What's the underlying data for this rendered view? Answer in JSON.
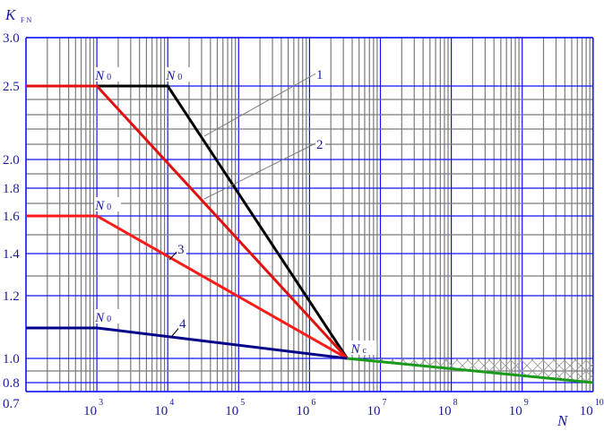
{
  "chart_data": {
    "type": "line",
    "ylabel": "K",
    "ylabel_sub": "FN",
    "xlabel": "N",
    "x_scale": "log",
    "xlim": [
      100,
      10000000000
    ],
    "ylim": [
      0.7,
      3.0
    ],
    "grid": true,
    "y_ticks": [
      3.0,
      2.5,
      2.0,
      1.8,
      1.6,
      1.4,
      1.2,
      1.0,
      0.8,
      0.7
    ],
    "y_tick_labels": [
      "3.0",
      "2.5",
      "2.0",
      "1.8",
      "1.6",
      "1.4",
      "1.2",
      "1.0",
      "0.8",
      "0.7"
    ],
    "x_ticks": [
      {
        "base": "10",
        "exp": "3",
        "value": 1000
      },
      {
        "base": "10",
        "exp": "4",
        "value": 10000
      },
      {
        "base": "10",
        "exp": "5",
        "value": 100000
      },
      {
        "base": "10",
        "exp": "6",
        "value": 1000000
      },
      {
        "base": "10",
        "exp": "7",
        "value": 10000000
      },
      {
        "base": "10",
        "exp": "8",
        "value": 100000000
      },
      {
        "base": "10",
        "exp": "9",
        "value": 1000000000
      },
      {
        "base": "10",
        "exp": "10",
        "value": 10000000000
      }
    ],
    "series": [
      {
        "name": "1",
        "color": "#000000",
        "points": [
          [
            100,
            2.5
          ],
          [
            10000,
            2.5
          ],
          [
            3400000,
            1.0
          ]
        ]
      },
      {
        "name": "2",
        "color": "#e01010",
        "points": [
          [
            100,
            2.5
          ],
          [
            1000,
            2.5
          ],
          [
            3400000,
            1.0
          ]
        ]
      },
      {
        "name": "3",
        "color": "#ff1a1a",
        "points": [
          [
            100,
            1.6
          ],
          [
            1000,
            1.6
          ],
          [
            3400000,
            1.0
          ]
        ]
      },
      {
        "name": "4",
        "color": "#00008b",
        "points": [
          [
            100,
            1.1
          ],
          [
            1000,
            1.1
          ],
          [
            3400000,
            1.0
          ]
        ]
      },
      {
        "name": "",
        "color": "#1a9a1a",
        "points": [
          [
            3400000,
            1.0
          ],
          [
            10000000000,
            0.8
          ]
        ]
      }
    ],
    "hatched_region": {
      "x": [
        3400000,
        10000000000
      ],
      "upper": 1.0,
      "lower_follows": "green line"
    },
    "annotations": [
      {
        "text": "N",
        "sub": "0",
        "x": 1000,
        "y": 2.5
      },
      {
        "text": "N",
        "sub": "0",
        "x": 10000,
        "y": 2.5
      },
      {
        "text": "N",
        "sub": "0",
        "x": 1000,
        "y": 1.6
      },
      {
        "text": "N",
        "sub": "0",
        "x": 1000,
        "y": 1.1
      },
      {
        "text": "N",
        "sub": "c",
        "x": 3400000,
        "y": 1.0
      }
    ],
    "curve_labels": [
      "1",
      "2",
      "3",
      "4"
    ]
  }
}
